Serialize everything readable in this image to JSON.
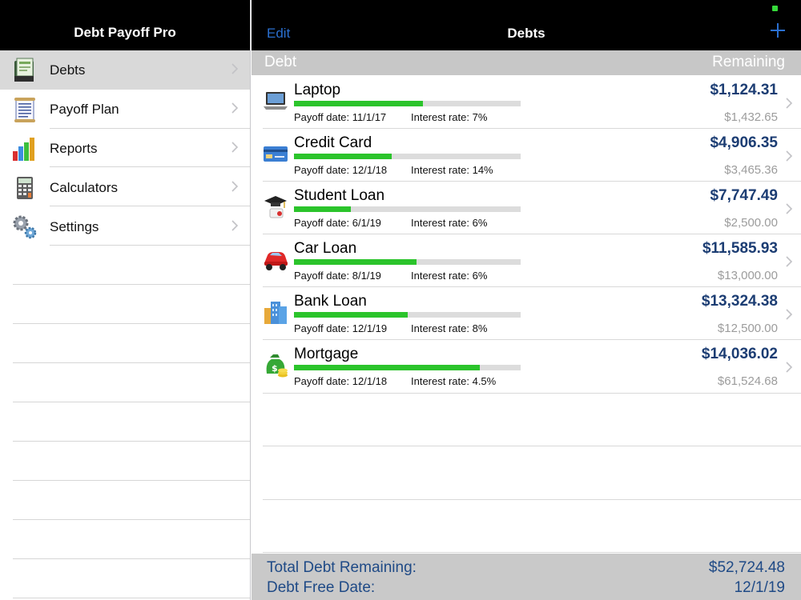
{
  "sidebar": {
    "title": "Debt Payoff Pro",
    "items": [
      {
        "label": "Debts",
        "icon": "ledger-icon",
        "selected": true
      },
      {
        "label": "Payoff Plan",
        "icon": "scroll-icon",
        "selected": false
      },
      {
        "label": "Reports",
        "icon": "bar-chart-icon",
        "selected": false
      },
      {
        "label": "Calculators",
        "icon": "calculator-icon",
        "selected": false
      },
      {
        "label": "Settings",
        "icon": "gears-icon",
        "selected": false
      }
    ]
  },
  "main": {
    "title": "Debts",
    "edit_label": "Edit",
    "add_icon": "plus-icon",
    "header": {
      "left": "Debt",
      "right": "Remaining"
    },
    "debts": [
      {
        "name": "Laptop",
        "icon": "laptop-icon",
        "payoff_date": "Payoff date: 11/1/17",
        "interest": "Interest rate: 7%",
        "remaining": "$1,124.31",
        "original": "$1,432.65",
        "progress": 0.57
      },
      {
        "name": "Credit Card",
        "icon": "credit-card-icon",
        "payoff_date": "Payoff date: 12/1/18",
        "interest": "Interest rate: 14%",
        "remaining": "$4,906.35",
        "original": "$3,465.36",
        "progress": 0.43
      },
      {
        "name": "Student Loan",
        "icon": "graduation-icon",
        "payoff_date": "Payoff date: 6/1/19",
        "interest": "Interest rate: 6%",
        "remaining": "$7,747.49",
        "original": "$2,500.00",
        "progress": 0.25
      },
      {
        "name": "Car Loan",
        "icon": "car-icon",
        "payoff_date": "Payoff date: 8/1/19",
        "interest": "Interest rate: 6%",
        "remaining": "$11,585.93",
        "original": "$13,000.00",
        "progress": 0.54
      },
      {
        "name": "Bank Loan",
        "icon": "bank-building-icon",
        "payoff_date": "Payoff date: 12/1/19",
        "interest": "Interest rate: 8%",
        "remaining": "$13,324.38",
        "original": "$12,500.00",
        "progress": 0.5
      },
      {
        "name": "Mortgage",
        "icon": "money-bag-icon",
        "payoff_date": "Payoff date: 12/1/18",
        "interest": "Interest rate: 4.5%",
        "remaining": "$14,036.02",
        "original": "$61,524.68",
        "progress": 0.82
      }
    ],
    "summary": {
      "total_label": "Total Debt Remaining:",
      "total_value": "$52,724.48",
      "free_label": "Debt Free Date:",
      "free_value": "12/1/19"
    }
  },
  "colors": {
    "accent": "#2a6fd0",
    "progress": "#2bc42b",
    "amount": "#1c3d73",
    "summary_text": "#1f4a86",
    "status_dot": "#36d93a"
  }
}
